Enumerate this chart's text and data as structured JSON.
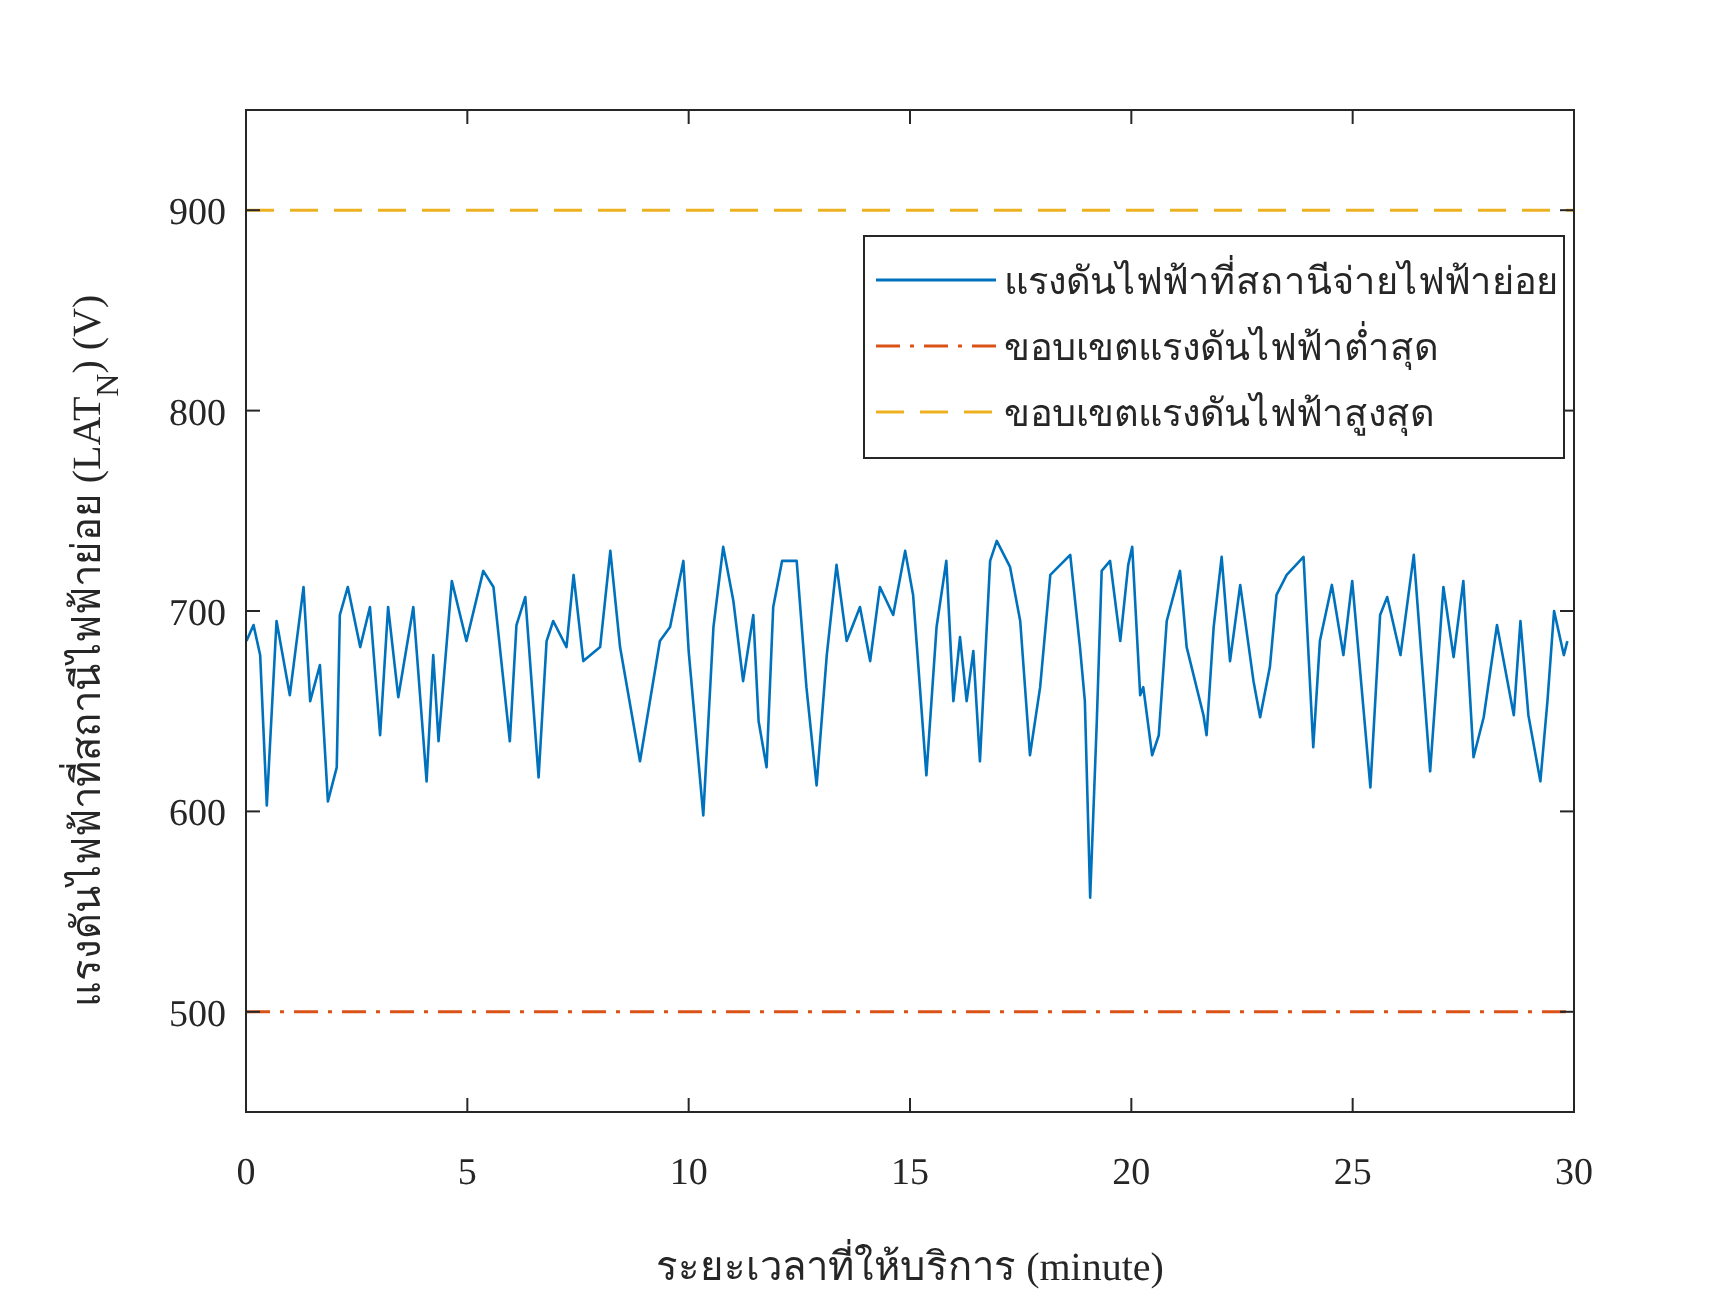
{
  "chart_data": {
    "type": "line",
    "xlabel": "ระยะเวลาที่ให้บริการ (minute)",
    "ylabel": "แรงดันไฟฟ้าที่สถานีไฟฟ้าย่อย (LAT$_{N}$) (V)",
    "xlim": [
      0,
      30
    ],
    "ylim": [
      450,
      950
    ],
    "xticks": [
      0,
      5,
      10,
      15,
      20,
      25,
      30
    ],
    "yticks": [
      500,
      600,
      700,
      800,
      900
    ],
    "grid": false,
    "legend": "top right",
    "line_style": "solid",
    "marker": "none",
    "series": [
      {
        "name": "แรงดันไฟฟ้าที่สถานีจ่ายไฟฟ้าย่อย",
        "color": "#0072bd",
        "x": [
          0.01,
          0.17,
          0.32,
          0.47,
          0.69,
          0.99,
          1.3,
          1.45,
          1.67,
          1.85,
          2.05,
          2.12,
          2.3,
          2.58,
          2.8,
          3.03,
          3.21,
          3.44,
          3.78,
          4.08,
          4.23,
          4.35,
          4.65,
          4.98,
          5.36,
          5.59,
          5.96,
          6.11,
          6.31,
          6.61,
          6.79,
          6.94,
          7.24,
          7.4,
          7.62,
          8.0,
          8.23,
          8.45,
          8.9,
          9.35,
          9.58,
          9.88,
          10.0,
          10.33,
          10.56,
          10.78,
          11.01,
          11.23,
          11.46,
          11.58,
          11.76,
          11.91,
          12.11,
          12.44,
          12.66,
          12.89,
          13.12,
          13.34,
          13.57,
          13.87,
          14.1,
          14.32,
          14.62,
          14.89,
          15.07,
          15.37,
          15.6,
          15.82,
          15.98,
          16.13,
          16.28,
          16.43,
          16.58,
          16.81,
          16.96,
          17.26,
          17.49,
          17.71,
          17.94,
          18.17,
          18.62,
          18.84,
          18.95,
          19.07,
          19.22,
          19.33,
          19.52,
          19.75,
          19.93,
          20.02,
          20.2,
          20.27,
          20.47,
          20.62,
          20.8,
          21.1,
          21.25,
          21.63,
          21.7,
          21.86,
          22.04,
          22.23,
          22.46,
          22.76,
          22.91,
          23.13,
          23.28,
          23.51,
          23.89,
          24.11,
          24.26,
          24.53,
          24.79,
          24.99,
          25.4,
          25.62,
          25.78,
          26.08,
          26.38,
          26.75,
          27.05,
          27.28,
          27.5,
          27.73,
          27.96,
          28.26,
          28.64,
          28.79,
          28.97,
          29.24,
          29.4,
          29.55,
          29.77,
          29.85
        ],
        "values": [
          685,
          693,
          678,
          603,
          695,
          658,
          712,
          655,
          673,
          605,
          622,
          698,
          712,
          682,
          702,
          638,
          702,
          657,
          702,
          615,
          678,
          635,
          715,
          685,
          720,
          712,
          635,
          693,
          707,
          617,
          685,
          695,
          682,
          718,
          675,
          682,
          730,
          682,
          625,
          685,
          692,
          725,
          680,
          598,
          692,
          732,
          705,
          665,
          698,
          645,
          622,
          702,
          725,
          725,
          662,
          613,
          678,
          723,
          685,
          702,
          675,
          712,
          698,
          730,
          708,
          618,
          692,
          725,
          655,
          687,
          655,
          680,
          625,
          725,
          735,
          722,
          695,
          628,
          662,
          718,
          728,
          682,
          655,
          557,
          645,
          720,
          725,
          685,
          723,
          732,
          658,
          662,
          628,
          638,
          695,
          720,
          682,
          648,
          638,
          692,
          727,
          675,
          713,
          665,
          647,
          672,
          708,
          718,
          727,
          632,
          685,
          713,
          678,
          715,
          612,
          698,
          707,
          678,
          728,
          620,
          712,
          677,
          715,
          627,
          647,
          693,
          648,
          695,
          648,
          615,
          655,
          700,
          678,
          685
        ]
      }
    ],
    "ref_lines": [
      {
        "axis": "y",
        "value": 500,
        "label": "ขอบเขตแรงดันไฟฟ้าต่ำสุด",
        "color": "#d95319",
        "line_style": "dashdot"
      },
      {
        "axis": "y",
        "value": 900,
        "label": "ขอบเขตแรงดันไฟฟ้าสูงสุด",
        "color": "#edb120",
        "line_style": "dashed"
      }
    ]
  }
}
